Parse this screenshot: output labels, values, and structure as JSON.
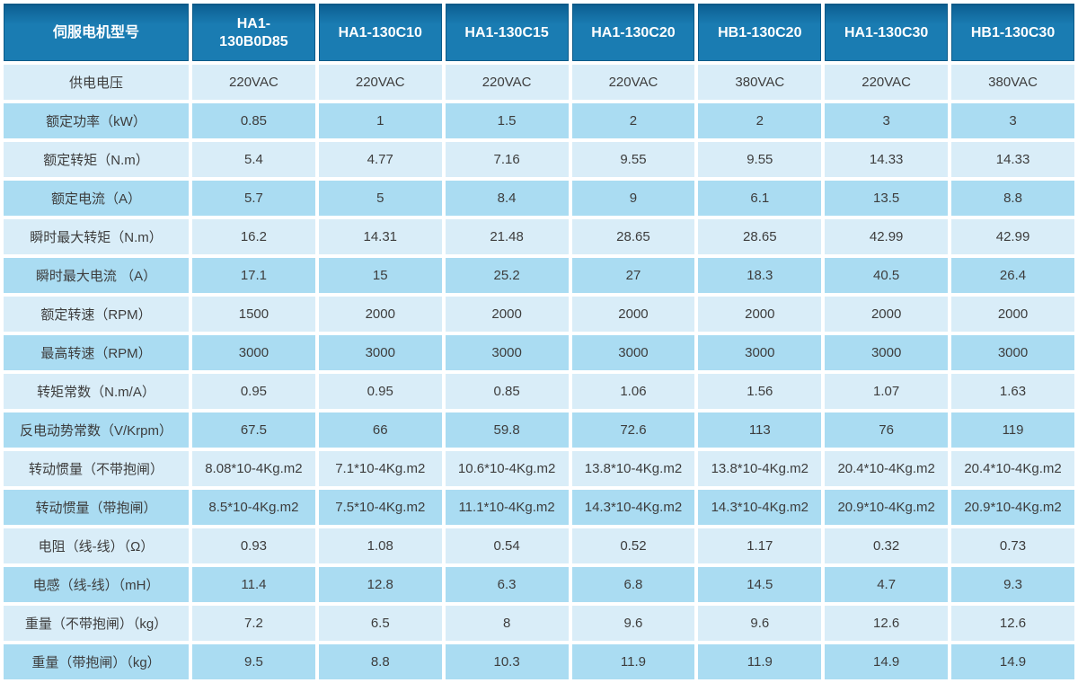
{
  "table": {
    "title_header": "伺服电机型号",
    "model_columns": [
      "HA1-130B0D85",
      "HA1-130C10",
      "HA1-130C15",
      "HA1-130C20",
      "HB1-130C20",
      "HA1-130C30",
      "HB1-130C30"
    ],
    "rows": [
      {
        "label": "供电电压",
        "values": [
          "220VAC",
          "220VAC",
          "220VAC",
          "220VAC",
          "380VAC",
          "220VAC",
          "380VAC"
        ]
      },
      {
        "label": "额定功率（kW）",
        "values": [
          "0.85",
          "1",
          "1.5",
          "2",
          "2",
          "3",
          "3"
        ]
      },
      {
        "label": "额定转矩（N.m）",
        "values": [
          "5.4",
          "4.77",
          "7.16",
          "9.55",
          "9.55",
          "14.33",
          "14.33"
        ]
      },
      {
        "label": "额定电流（A）",
        "values": [
          "5.7",
          "5",
          "8.4",
          "9",
          "6.1",
          "13.5",
          "8.8"
        ]
      },
      {
        "label": "瞬时最大转矩（N.m）",
        "values": [
          "16.2",
          "14.31",
          "21.48",
          "28.65",
          "28.65",
          "42.99",
          "42.99"
        ]
      },
      {
        "label": "瞬时最大电流 （A）",
        "values": [
          "17.1",
          "15",
          "25.2",
          "27",
          "18.3",
          "40.5",
          "26.4"
        ]
      },
      {
        "label": "额定转速（RPM）",
        "values": [
          "1500",
          "2000",
          "2000",
          "2000",
          "2000",
          "2000",
          "2000"
        ]
      },
      {
        "label": "最高转速（RPM）",
        "values": [
          "3000",
          "3000",
          "3000",
          "3000",
          "3000",
          "3000",
          "3000"
        ]
      },
      {
        "label": "转矩常数（N.m/A）",
        "values": [
          "0.95",
          "0.95",
          "0.85",
          "1.06",
          "1.56",
          "1.07",
          "1.63"
        ]
      },
      {
        "label": "反电动势常数（V/Krpm）",
        "values": [
          "67.5",
          "66",
          "59.8",
          "72.6",
          "113",
          "76",
          "119"
        ]
      },
      {
        "label": "转动惯量（不带抱闸）",
        "values": [
          "8.08*10-4Kg.m2",
          "7.1*10-4Kg.m2",
          "10.6*10-4Kg.m2",
          "13.8*10-4Kg.m2",
          "13.8*10-4Kg.m2",
          "20.4*10-4Kg.m2",
          "20.4*10-4Kg.m2"
        ]
      },
      {
        "label": "转动惯量（带抱闸）",
        "values": [
          "8.5*10-4Kg.m2",
          "7.5*10-4Kg.m2",
          "11.1*10-4Kg.m2",
          "14.3*10-4Kg.m2",
          "14.3*10-4Kg.m2",
          "20.9*10-4Kg.m2",
          "20.9*10-4Kg.m2"
        ]
      },
      {
        "label": "电阻（线-线）（Ω）",
        "values": [
          "0.93",
          "1.08",
          "0.54",
          "0.52",
          "1.17",
          "0.32",
          "0.73"
        ]
      },
      {
        "label": "电感（线-线）（mH）",
        "values": [
          "11.4",
          "12.8",
          "6.3",
          "6.8",
          "14.5",
          "4.7",
          "9.3"
        ]
      },
      {
        "label": "重量（不带抱闸）（kg）",
        "values": [
          "7.2",
          "6.5",
          "8",
          "9.6",
          "9.6",
          "12.6",
          "12.6"
        ]
      },
      {
        "label": "重量（带抱闸）（kg）",
        "values": [
          "9.5",
          "8.8",
          "10.3",
          "11.9",
          "11.9",
          "14.9",
          "14.9"
        ]
      }
    ],
    "colors": {
      "header_bg": "#1a7cb2",
      "header_bg_dark": "#0d6093",
      "header_border": "#0b5a88",
      "header_text": "#ffffff",
      "row_light": "#d9edf8",
      "row_dark": "#aadcf2",
      "cell_text": "#3d3d3d",
      "grid_gap": "#ffffff"
    }
  }
}
